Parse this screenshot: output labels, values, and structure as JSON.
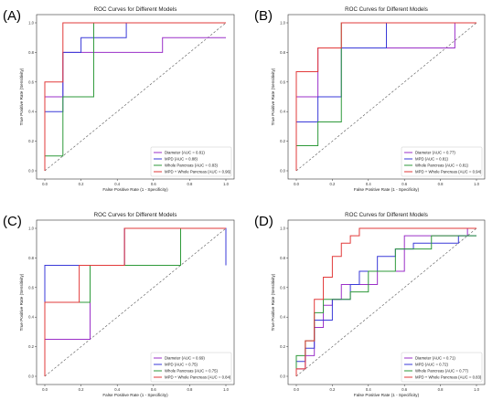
{
  "colors": {
    "purple": "#9b30c8",
    "blue": "#3a3ad8",
    "green": "#2e9a3a",
    "red": "#e23a3a",
    "diagonal": "#555555"
  },
  "chart_data": [
    {
      "panel": "(A)",
      "type": "line",
      "title": "ROC Curves for Different Models",
      "xlabel": "False Positive Rate (1 - Specificity)",
      "ylabel": "True Positive Rate (Sensitivity)",
      "xlim": [
        0,
        1
      ],
      "ylim": [
        0,
        1
      ],
      "xticks": [
        "0.0",
        "0.2",
        "0.4",
        "0.6",
        "0.8",
        "1.0"
      ],
      "yticks": [
        "0.0",
        "0.2",
        "0.4",
        "0.6",
        "0.8",
        "1.0"
      ],
      "legend_position": "lower-right",
      "series": [
        {
          "name": "Diameter (AUC = 0.81)",
          "color": "purple",
          "x": [
            0,
            0,
            0.1,
            0.1,
            0.65,
            0.65,
            1.0
          ],
          "y": [
            0,
            0.5,
            0.5,
            0.8,
            0.8,
            0.9,
            0.9
          ]
        },
        {
          "name": "MPD (AUC = 0.88)",
          "color": "blue",
          "x": [
            0,
            0,
            0.1,
            0.1,
            0.2,
            0.2,
            0.45,
            0.45,
            1.0
          ],
          "y": [
            0,
            0.4,
            0.4,
            0.8,
            0.8,
            0.9,
            0.9,
            1.0,
            1.0
          ]
        },
        {
          "name": "Whole Pancreas (AUC = 0.83)",
          "color": "green",
          "x": [
            0,
            0,
            0.1,
            0.1,
            0.27,
            0.27,
            1.0
          ],
          "y": [
            0,
            0.1,
            0.1,
            0.5,
            0.5,
            1.0,
            1.0
          ]
        },
        {
          "name": "MPD + Whole Pancreas (AUC = 0.96)",
          "color": "red",
          "x": [
            0,
            0,
            0.1,
            0.1,
            0.27,
            0.27,
            1.0
          ],
          "y": [
            0,
            0.6,
            0.6,
            1.0,
            1.0,
            1.0,
            1.0
          ]
        }
      ]
    },
    {
      "panel": "(B)",
      "type": "line",
      "title": "ROC Curves for Different Models",
      "xlabel": "False Positive Rate (1 - Specificity)",
      "ylabel": "True Positive Rate (Sensitivity)",
      "xlim": [
        0,
        1
      ],
      "ylim": [
        0,
        1
      ],
      "xticks": [
        "0.0",
        "0.2",
        "0.4",
        "0.6",
        "0.8",
        "1.0"
      ],
      "yticks": [
        "0.0",
        "0.2",
        "0.4",
        "0.6",
        "0.8",
        "1.0"
      ],
      "legend_position": "lower-right",
      "series": [
        {
          "name": "Diameter (AUC = 0.77)",
          "color": "purple",
          "x": [
            0,
            0,
            0.12,
            0.12,
            0.25,
            0.25,
            0.88,
            0.88,
            1.0
          ],
          "y": [
            0,
            0.5,
            0.5,
            0.83,
            0.83,
            0.83,
            0.83,
            1.0,
            1.0
          ]
        },
        {
          "name": "MPD (AUC = 0.81)",
          "color": "blue",
          "x": [
            0,
            0,
            0.12,
            0.12,
            0.25,
            0.25,
            0.5,
            0.5,
            1.0
          ],
          "y": [
            0,
            0.33,
            0.33,
            0.5,
            0.5,
            0.83,
            0.83,
            1.0,
            1.0
          ]
        },
        {
          "name": "Whole Pancreas (AUC = 0.81)",
          "color": "green",
          "x": [
            0,
            0,
            0.12,
            0.12,
            0.25,
            0.25,
            1.0
          ],
          "y": [
            0,
            0.17,
            0.17,
            0.33,
            0.33,
            1.0,
            1.0
          ]
        },
        {
          "name": "MPD + Whole Pancreas (AUC = 0.94)",
          "color": "red",
          "x": [
            0,
            0,
            0.12,
            0.12,
            0.25,
            0.25,
            1.0
          ],
          "y": [
            0,
            0.67,
            0.67,
            0.83,
            0.83,
            1.0,
            1.0
          ]
        }
      ]
    },
    {
      "panel": "(C)",
      "type": "line",
      "title": "ROC Curves for Different Models",
      "xlabel": "False Positive Rate (1 - Specificity)",
      "ylabel": "True Positive Rate (Sensitivity)",
      "xlim": [
        0,
        1
      ],
      "ylim": [
        0,
        1
      ],
      "xticks": [
        "0.0",
        "0.2",
        "0.4",
        "0.6",
        "0.8",
        "1.0"
      ],
      "yticks": [
        "0.0",
        "0.2",
        "0.4",
        "0.6",
        "0.8",
        "1.0"
      ],
      "legend_position": "lower-right",
      "series": [
        {
          "name": "Diameter (AUC = 0.69)",
          "color": "purple",
          "x": [
            0,
            0,
            0.25,
            0.25,
            0.44,
            0.44,
            1.0
          ],
          "y": [
            0,
            0.25,
            0.25,
            0.75,
            0.75,
            1.0,
            1.0
          ]
        },
        {
          "name": "MPD (AUC = 0.75)",
          "color": "blue",
          "x": [
            0,
            0,
            0.19,
            0.19,
            0.44,
            0.44,
            1.0,
            1.0
          ],
          "y": [
            0,
            0.75,
            0.75,
            0.75,
            0.75,
            1.0,
            1.0,
            0.75
          ]
        },
        {
          "name": "Whole Pancreas (AUC = 0.75)",
          "color": "green",
          "x": [
            0,
            0,
            0.25,
            0.25,
            0.75,
            0.75,
            1.0
          ],
          "y": [
            0,
            0.5,
            0.5,
            0.75,
            0.75,
            1.0,
            1.0
          ]
        },
        {
          "name": "MPD + Whole Pancreas (AUC = 0.84)",
          "color": "red",
          "x": [
            0,
            0,
            0.19,
            0.19,
            0.44,
            0.44,
            1.0
          ],
          "y": [
            0,
            0.5,
            0.5,
            0.75,
            0.75,
            1.0,
            1.0
          ]
        }
      ]
    },
    {
      "panel": "(D)",
      "type": "line",
      "title": "ROC Curves for Different Models",
      "xlabel": "False Positive Rate (1 - Specificity)",
      "ylabel": "True Positive Rate (Sensitivity)",
      "xlim": [
        0,
        1
      ],
      "ylim": [
        0,
        1
      ],
      "xticks": [
        "0.0",
        "0.2",
        "0.4",
        "0.6",
        "0.8",
        "1.0"
      ],
      "yticks": [
        "0.0",
        "0.2",
        "0.4",
        "0.6",
        "0.8",
        "1.0"
      ],
      "legend_position": "lower-right",
      "series": [
        {
          "name": "Diameter (AUC = 0.71)",
          "color": "purple",
          "x": [
            0,
            0,
            0.05,
            0.05,
            0.1,
            0.1,
            0.15,
            0.15,
            0.2,
            0.2,
            0.25,
            0.25,
            0.45,
            0.45,
            0.6,
            0.6,
            0.95,
            0.95,
            1.0
          ],
          "y": [
            0,
            0.05,
            0.05,
            0.14,
            0.14,
            0.33,
            0.33,
            0.48,
            0.48,
            0.52,
            0.52,
            0.62,
            0.62,
            0.71,
            0.71,
            0.95,
            0.95,
            1.0,
            1.0
          ]
        },
        {
          "name": "MPD (AUC = 0.72)",
          "color": "blue",
          "x": [
            0,
            0,
            0.05,
            0.05,
            0.1,
            0.1,
            0.2,
            0.2,
            0.3,
            0.3,
            0.35,
            0.35,
            0.45,
            0.45,
            0.55,
            0.55,
            0.65,
            0.65,
            0.9,
            0.9,
            1.0
          ],
          "y": [
            0,
            0.1,
            0.1,
            0.19,
            0.19,
            0.38,
            0.38,
            0.52,
            0.52,
            0.62,
            0.62,
            0.71,
            0.71,
            0.81,
            0.81,
            0.86,
            0.86,
            0.9,
            0.9,
            0.95,
            0.95
          ]
        },
        {
          "name": "Whole Pancreas (AUC = 0.77)",
          "color": "green",
          "x": [
            0,
            0,
            0.05,
            0.05,
            0.1,
            0.1,
            0.15,
            0.15,
            0.3,
            0.3,
            0.4,
            0.4,
            0.55,
            0.55,
            0.75,
            0.75,
            1.0
          ],
          "y": [
            0,
            0.14,
            0.14,
            0.24,
            0.24,
            0.43,
            0.43,
            0.52,
            0.52,
            0.57,
            0.57,
            0.71,
            0.71,
            0.86,
            0.86,
            0.95,
            0.95
          ]
        },
        {
          "name": "MPD + Whole Pancreas (AUC = 0.83)",
          "color": "red",
          "x": [
            0,
            0,
            0.05,
            0.05,
            0.1,
            0.1,
            0.15,
            0.15,
            0.2,
            0.2,
            0.25,
            0.25,
            0.3,
            0.3,
            0.35,
            0.35,
            1.0
          ],
          "y": [
            0,
            0.05,
            0.05,
            0.24,
            0.24,
            0.52,
            0.52,
            0.67,
            0.67,
            0.81,
            0.81,
            0.9,
            0.9,
            0.95,
            0.95,
            1.0,
            1.0
          ]
        }
      ]
    }
  ]
}
